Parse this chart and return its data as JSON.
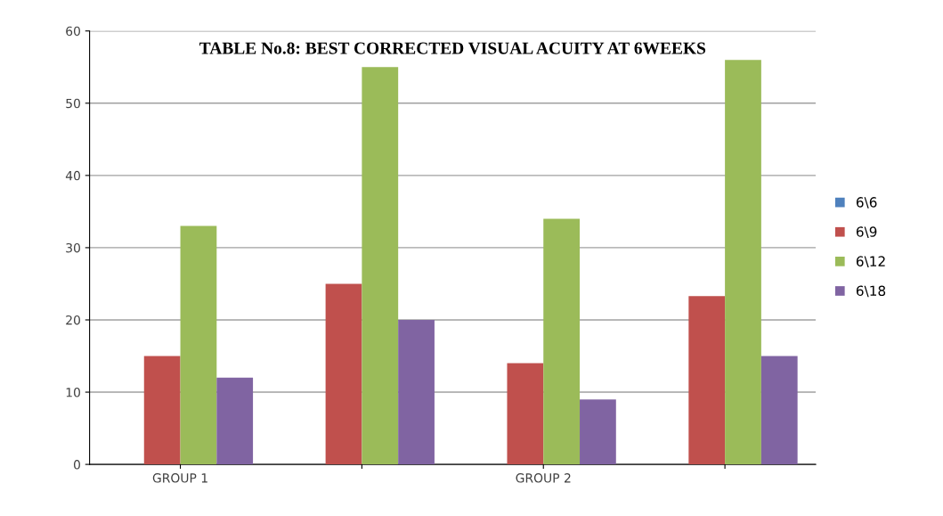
{
  "chart_data": {
    "type": "bar",
    "title": "TABLE No.8: BEST CORRECTED VISUAL ACUITY AT 6WEEKS",
    "categories": [
      "GROUP 1",
      null,
      "GROUP 2",
      null
    ],
    "series": [
      {
        "name": "6\\6",
        "color": "#4f81bd",
        "values": [
          0,
          0,
          0,
          0
        ]
      },
      {
        "name": "6\\9",
        "color": "#c0504d",
        "values": [
          15,
          25,
          14,
          23.3
        ]
      },
      {
        "name": "6\\12",
        "color": "#9bbb59",
        "values": [
          33,
          55,
          34,
          56
        ]
      },
      {
        "name": "6\\18",
        "color": "#8064a2",
        "values": [
          12,
          20,
          9,
          15
        ]
      }
    ],
    "ylim": [
      0,
      60
    ],
    "yticks": [
      0,
      10,
      20,
      30,
      40,
      50,
      60
    ],
    "grid": "y",
    "legend": "right"
  }
}
